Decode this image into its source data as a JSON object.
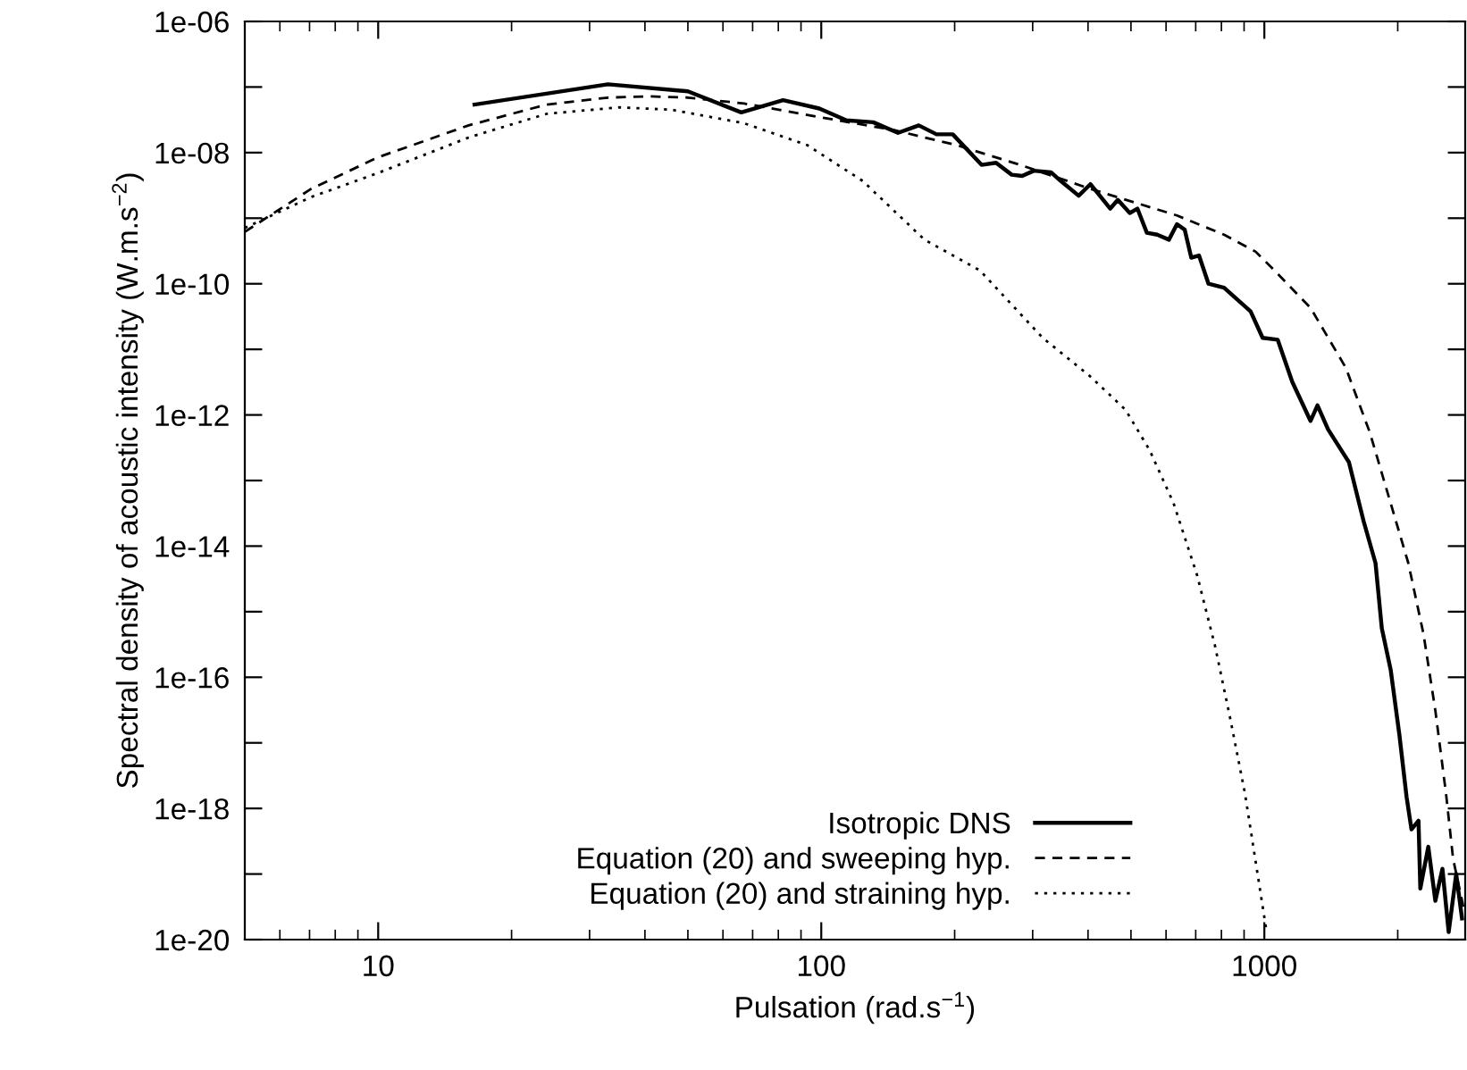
{
  "chart_data": {
    "type": "line",
    "xlabel": "Pulsation (rad.s$^{−1}$)",
    "ylabel": "Spectral density of acoustic intensity (W.m.s$^{−2}$)",
    "log": "xy",
    "grid": false,
    "legend": "bottom right",
    "marker": "none",
    "xlim": [
      5,
      2840
    ],
    "xticks": [
      10,
      100,
      1000
    ],
    "ylim": [
      1e-20,
      1e-06
    ],
    "yticks": [
      {
        "value": 1e-20,
        "label": "1e-20"
      },
      {
        "value": 1e-19,
        "label": null
      },
      {
        "value": 1e-18,
        "label": "1e-18"
      },
      {
        "value": 1e-17,
        "label": null
      },
      {
        "value": 1e-16,
        "label": "1e-16"
      },
      {
        "value": 1e-15,
        "label": null
      },
      {
        "value": 1e-14,
        "label": "1e-14"
      },
      {
        "value": 1e-13,
        "label": null
      },
      {
        "value": 1e-12,
        "label": "1e-12"
      },
      {
        "value": 1e-11,
        "label": null
      },
      {
        "value": 1e-10,
        "label": "1e-10"
      },
      {
        "value": 1e-09,
        "label": null
      },
      {
        "value": 1e-08,
        "label": "1e-08"
      },
      {
        "value": 1e-07,
        "label": null
      },
      {
        "value": 1e-06,
        "label": "1e-06"
      }
    ],
    "series": [
      {
        "name": "Isotropic DNS",
        "color": "#000000",
        "line_style": "solid",
        "x": [
          16.5,
          33,
          50,
          66,
          82,
          99,
          114,
          131,
          149,
          166,
          182,
          198,
          230,
          248,
          269,
          284,
          302,
          330,
          347,
          381,
          405,
          449,
          467,
          497,
          517,
          543,
          573,
          609,
          635,
          661,
          684,
          712,
          748,
          811,
          931,
          991,
          1072,
          1156,
          1271,
          1318,
          1393,
          1552,
          1675,
          1782,
          1841,
          1928,
          2018,
          2094,
          2148,
          2228,
          2249,
          2344,
          2432,
          2523,
          2606,
          2710,
          2793
        ],
        "values": [
          5.4e-08,
          1.1e-07,
          8.6e-08,
          4.1e-08,
          6.3e-08,
          4.7e-08,
          3.1e-08,
          2.9e-08,
          2e-08,
          2.6e-08,
          1.9e-08,
          1.9e-08,
          6.5e-09,
          7e-09,
          4.6e-09,
          4.4e-09,
          5.3e-09,
          5e-09,
          3.7e-09,
          2.2e-09,
          3.3e-09,
          1.4e-09,
          1.9e-09,
          1.2e-09,
          1.4e-09,
          6e-10,
          5.6e-10,
          4.7e-10,
          8.1e-10,
          6.7e-10,
          2.5e-10,
          2.7e-10,
          1e-10,
          8.7e-11,
          3.8e-11,
          1.5e-11,
          1.4e-11,
          3.2e-12,
          8.1e-13,
          1.4e-12,
          6e-13,
          1.9e-13,
          2.4e-14,
          5.5e-15,
          5.6e-16,
          1.3e-16,
          1.3e-17,
          1.5e-18,
          4.8e-19,
          6.5e-19,
          6e-20,
          2.6e-19,
          3.9e-20,
          1.2e-19,
          1.3e-20,
          1e-19,
          2.1e-20
        ]
      },
      {
        "name": "Equation (20) and sweeping hyp.",
        "color": "#000000",
        "line_style": "dashed",
        "x": [
          5,
          7.06,
          10,
          16,
          24,
          33,
          41,
          50,
          67,
          101,
          146,
          202,
          281,
          405,
          635,
          811,
          955,
          1054,
          1271,
          1528,
          1730,
          1928,
          2113,
          2286,
          2432,
          2570,
          2667,
          2830
        ],
        "values": [
          6.2e-10,
          2.8e-09,
          8.5e-09,
          2.6e-08,
          5.4e-08,
          6.9e-08,
          7.2e-08,
          6.9e-08,
          5.6e-08,
          3.4e-08,
          2.2e-08,
          1.3e-08,
          6.5e-09,
          2.8e-09,
          1.1e-09,
          5.6e-10,
          3.1e-10,
          1.6e-10,
          4.3e-11,
          5.2e-12,
          5.4e-13,
          4.5e-14,
          5.5e-15,
          4.6e-16,
          3.1e-17,
          1.7e-18,
          1.7e-19,
          2.6e-20
        ]
      },
      {
        "name": "Equation (20) and straining hyp.",
        "color": "#000000",
        "line_style": "dotted",
        "x": [
          5,
          7.06,
          10,
          16,
          24,
          35,
          46,
          67,
          93,
          124,
          171,
          228,
          316,
          404,
          486,
          551,
          624,
          705,
          774,
          836,
          904,
          931,
          1012
        ],
        "values": [
          7.1e-10,
          2.1e-09,
          4.9e-09,
          1.7e-08,
          3.9e-08,
          4.9e-08,
          4.5e-08,
          2.8e-08,
          1.3e-08,
          3.7e-09,
          4.7e-10,
          1.6e-10,
          1.5e-11,
          3.9e-12,
          1.2e-12,
          2.9e-13,
          4.5e-14,
          3.6e-15,
          3e-16,
          2.5e-17,
          1.7e-18,
          4.8e-19,
          1.3e-20
        ]
      }
    ]
  }
}
